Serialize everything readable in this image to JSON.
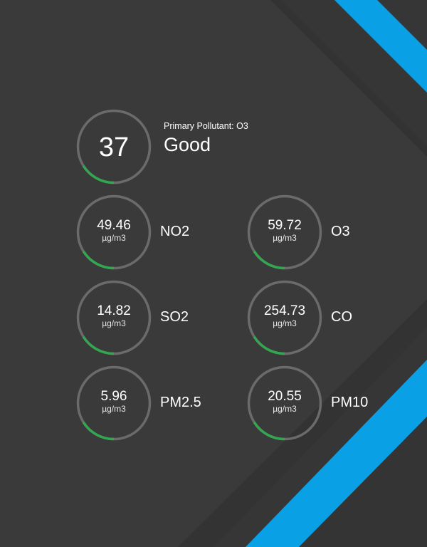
{
  "colors": {
    "background": "#3a3a3a",
    "accent": "#0aa0e6",
    "ring_track": "#6b6b6b",
    "ring_fill": "#31a84f"
  },
  "summary": {
    "aqi": "37",
    "aqi_level": 0.16,
    "primary_pollutant_label": "Primary Pollutant: O3",
    "status": "Good"
  },
  "pollutants": [
    {
      "id": "no2",
      "value": "49.46",
      "unit": "µg/m3",
      "name": "NO2",
      "level": 0.16
    },
    {
      "id": "o3",
      "value": "59.72",
      "unit": "µg/m3",
      "name": "O3",
      "level": 0.16
    },
    {
      "id": "so2",
      "value": "14.82",
      "unit": "µg/m3",
      "name": "SO2",
      "level": 0.16
    },
    {
      "id": "co",
      "value": "254.73",
      "unit": "µg/m3",
      "name": "CO",
      "level": 0.16
    },
    {
      "id": "pm25",
      "value": "5.96",
      "unit": "µg/m3",
      "name": "PM2.5",
      "level": 0.16
    },
    {
      "id": "pm10",
      "value": "20.55",
      "unit": "µg/m3",
      "name": "PM10",
      "level": 0.16
    }
  ]
}
